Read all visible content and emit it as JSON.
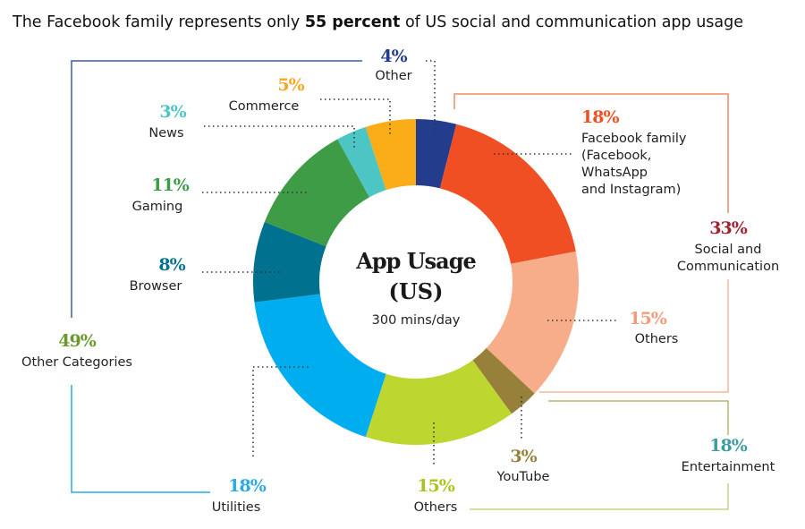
{
  "title_pre": "The Facebook family represents only ",
  "title_bold": "55 percent",
  "title_post": " of US social and communication app usage",
  "center": {
    "line1": "App Usage",
    "line2": "(US)",
    "line3": "300 mins/day"
  },
  "groups": {
    "social": {
      "pct": "33%",
      "line1": "Social and",
      "line2": "Communication",
      "color": "#f08a6a",
      "pct_color": "#a3202e"
    },
    "entertainment": {
      "pct": "18%",
      "label": "Entertainment",
      "color": "#c8cf8c",
      "pct_color": "#3d9da1"
    },
    "other": {
      "pct": "49%",
      "label": "Other Categories",
      "color": "#3b5ba0",
      "color2": "#29abe2",
      "pct_color": "#6b9a2c"
    }
  },
  "chart_data": {
    "type": "pie",
    "title": "App Usage (US)",
    "total": "300 mins/day",
    "slices": [
      {
        "name": "Other",
        "pct_label": "4%",
        "value": 4,
        "color": "#233d8c"
      },
      {
        "name": "Facebook family",
        "pct_label": "18%",
        "value": 18,
        "color": "#f04e23",
        "lines": [
          "Facebook family",
          "(Facebook,",
          "WhatsApp",
          "and Instagram)"
        ]
      },
      {
        "name": "Others",
        "pct_label": "15%",
        "value": 15,
        "color": "#f7ad8a"
      },
      {
        "name": "YouTube",
        "pct_label": "3%",
        "value": 3,
        "color": "#97803a"
      },
      {
        "name": "Others",
        "pct_label": "15%",
        "value": 15,
        "color": "#bed630"
      },
      {
        "name": "Utilities",
        "pct_label": "18%",
        "value": 18,
        "color": "#00aeef"
      },
      {
        "name": "Browser",
        "pct_label": "8%",
        "value": 8,
        "color": "#00728f"
      },
      {
        "name": "Gaming",
        "pct_label": "11%",
        "value": 11,
        "color": "#3e9c47"
      },
      {
        "name": "News",
        "pct_label": "3%",
        "value": 3,
        "color": "#4cc5c4"
      },
      {
        "name": "Commerce",
        "pct_label": "5%",
        "value": 5,
        "color": "#fbad18"
      }
    ]
  }
}
